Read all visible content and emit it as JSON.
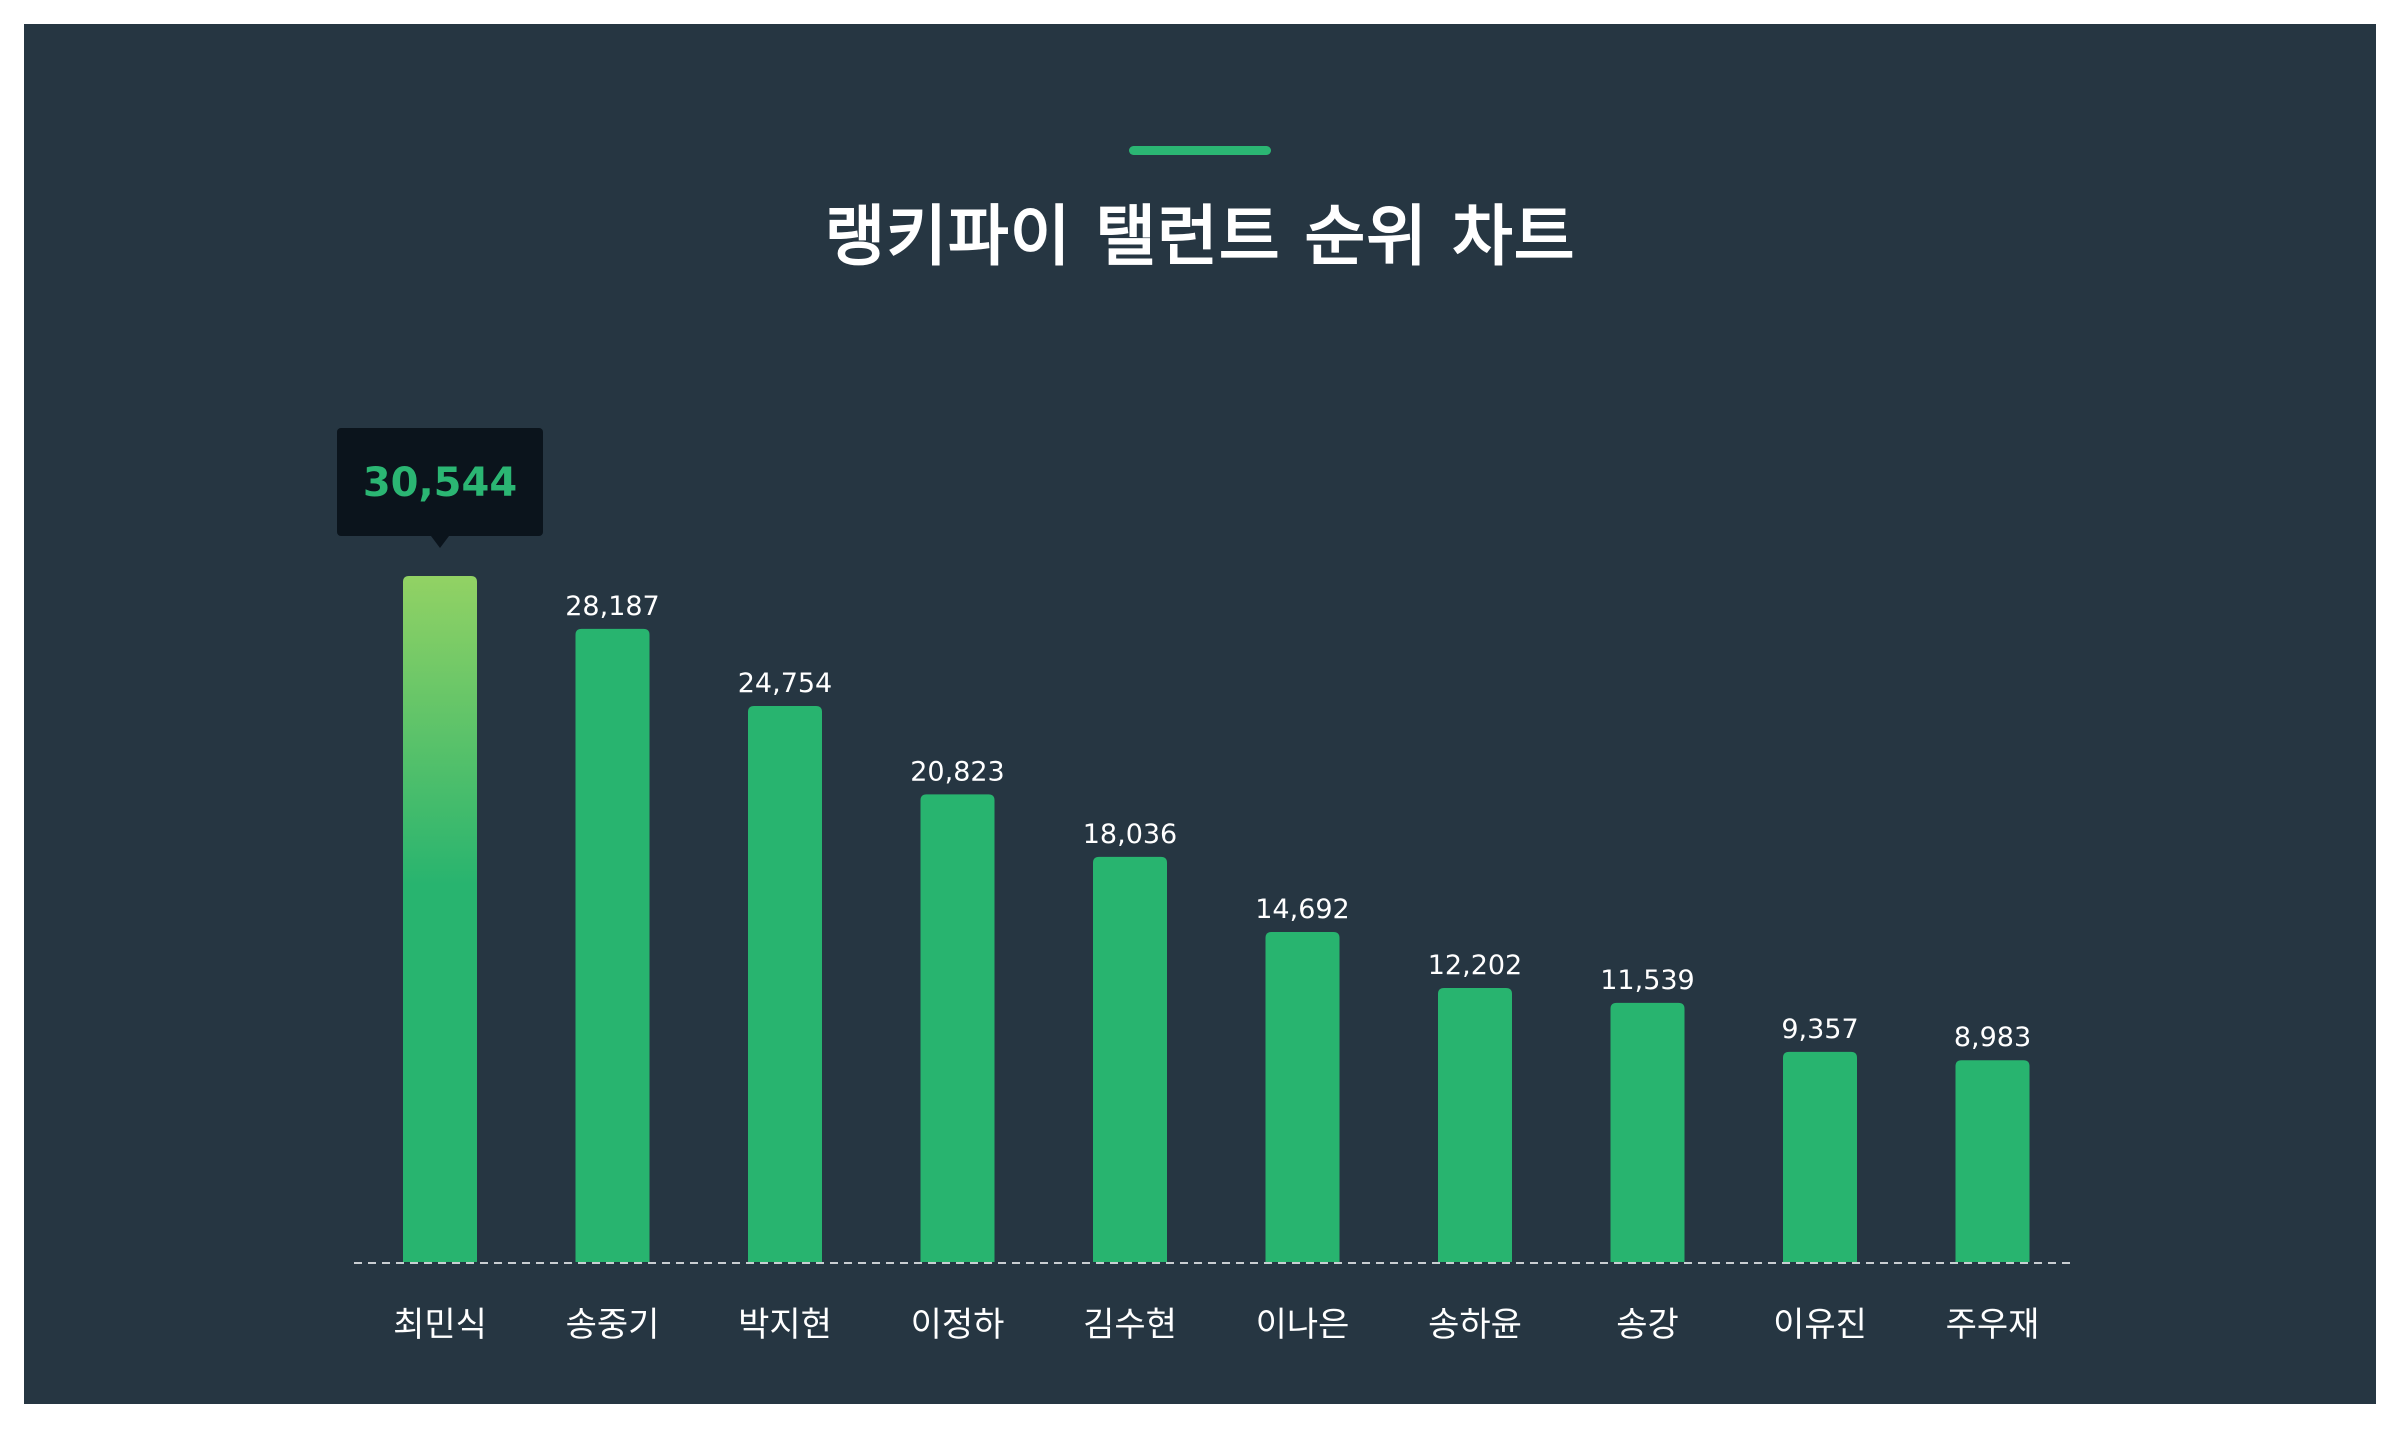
{
  "colors": {
    "background": "#263642",
    "accent": "#2bb673",
    "bar": "#28b46f",
    "highlight_gradient_top": "#92d264",
    "tooltip_bg": "#0b141c",
    "text": "#ffffff",
    "baseline": "#c9ced2"
  },
  "title": "랭키파이 탤런트 순위 차트",
  "tooltip": {
    "label": "30,544"
  },
  "chart_data": {
    "type": "bar",
    "title": "랭키파이 탤런트 순위 차트",
    "categories": [
      "최민식",
      "송중기",
      "박지현",
      "이정하",
      "김수현",
      "이나은",
      "송하윤",
      "송강",
      "이유진",
      "주우재"
    ],
    "values": [
      30544,
      28187,
      24754,
      20823,
      18036,
      14692,
      12202,
      11539,
      9357,
      8983
    ],
    "value_labels": [
      "30,544",
      "28,187",
      "24,754",
      "20,823",
      "18,036",
      "14,692",
      "12,202",
      "11,539",
      "9,357",
      "8,983"
    ],
    "highlighted_index": 0,
    "xlabel": "",
    "ylabel": "",
    "ylim": [
      0,
      30544
    ],
    "grid": false,
    "legend": "none"
  }
}
